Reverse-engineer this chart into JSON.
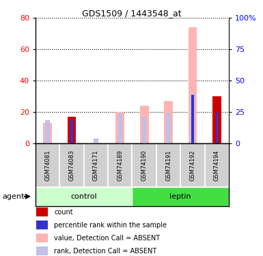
{
  "title": "GDS1509 / 1443548_at",
  "samples": [
    "GSM74081",
    "GSM74083",
    "GSM74171",
    "GSM74189",
    "GSM74190",
    "GSM74191",
    "GSM74192",
    "GSM74194"
  ],
  "value_absent": [
    13,
    17,
    0,
    20,
    24,
    27,
    74,
    0
  ],
  "rank_absent": [
    15,
    16,
    3,
    19,
    17,
    19,
    32,
    20
  ],
  "count": [
    0,
    17,
    0,
    0,
    0,
    0,
    0,
    30
  ],
  "percentile_rank": [
    0,
    15,
    0,
    0,
    0,
    0,
    31,
    20
  ],
  "left_ylim": [
    0,
    80
  ],
  "right_ylim": [
    0,
    100
  ],
  "left_yticks": [
    0,
    20,
    40,
    60,
    80
  ],
  "right_yticks": [
    0,
    25,
    50,
    75,
    100
  ],
  "right_yticklabels": [
    "0",
    "25",
    "50",
    "75",
    "100%"
  ],
  "color_count": "#cc0000",
  "color_percentile": "#3333cc",
  "color_value_absent": "#ffb3b3",
  "color_rank_absent": "#c0c0e8",
  "color_control_bg_light": "#ccffcc",
  "color_leptin_bg": "#44dd44",
  "color_sample_bg": "#d0d0d0",
  "bar_width": 0.12
}
